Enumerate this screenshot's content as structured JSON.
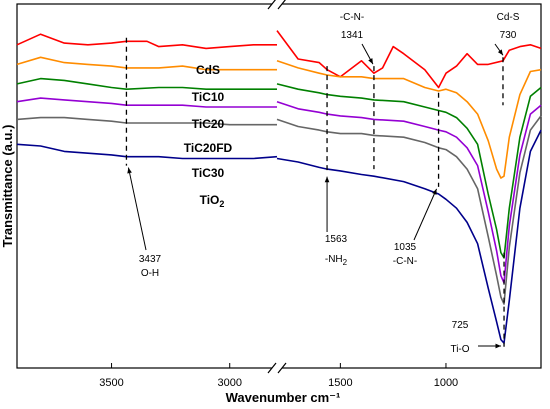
{
  "chart_data": {
    "type": "line",
    "xlabel": "Wavenumber cm⁻¹",
    "ylabel": "Transmittance (a.u.)",
    "x_reversed": true,
    "x_axis_break": [
      2800,
      1800
    ],
    "xlim_left": [
      3900,
      2800
    ],
    "xlim_right": [
      1800,
      550
    ],
    "x_ticks": [
      3500,
      3000,
      1500,
      1000
    ],
    "legend": "none (series named by inline labels)",
    "series": [
      {
        "name": "CdS",
        "color": "#ff0000",
        "points": [
          [
            3900,
            72
          ],
          [
            3800,
            78
          ],
          [
            3700,
            73
          ],
          [
            3600,
            72
          ],
          [
            3500,
            73
          ],
          [
            3437,
            74
          ],
          [
            3350,
            74
          ],
          [
            3300,
            71
          ],
          [
            3200,
            72
          ],
          [
            3100,
            70
          ],
          [
            3000,
            71
          ],
          [
            2900,
            72
          ],
          [
            2800,
            72
          ],
          [
            1800,
            80
          ],
          [
            1700,
            64
          ],
          [
            1600,
            62
          ],
          [
            1563,
            58
          ],
          [
            1500,
            54
          ],
          [
            1400,
            63
          ],
          [
            1341,
            56
          ],
          [
            1300,
            59
          ],
          [
            1250,
            71
          ],
          [
            1200,
            67
          ],
          [
            1100,
            58
          ],
          [
            1035,
            48
          ],
          [
            1000,
            56
          ],
          [
            950,
            60
          ],
          [
            900,
            67
          ],
          [
            850,
            61
          ],
          [
            800,
            61
          ],
          [
            730,
            63
          ],
          [
            700,
            69
          ],
          [
            650,
            71
          ],
          [
            600,
            72
          ],
          [
            550,
            70
          ]
        ]
      },
      {
        "name": "TiC10",
        "color": "#ff8c00",
        "points": [
          [
            3900,
            61
          ],
          [
            3800,
            65
          ],
          [
            3700,
            62
          ],
          [
            3600,
            61
          ],
          [
            3500,
            60
          ],
          [
            3437,
            59
          ],
          [
            3300,
            59
          ],
          [
            3200,
            60
          ],
          [
            3100,
            58
          ],
          [
            3000,
            58
          ],
          [
            2900,
            58
          ],
          [
            2800,
            58
          ],
          [
            1800,
            63
          ],
          [
            1700,
            59
          ],
          [
            1600,
            56
          ],
          [
            1563,
            55
          ],
          [
            1500,
            54
          ],
          [
            1400,
            54
          ],
          [
            1341,
            53
          ],
          [
            1200,
            53
          ],
          [
            1100,
            48
          ],
          [
            1035,
            46
          ],
          [
            1000,
            47
          ],
          [
            950,
            45
          ],
          [
            900,
            40
          ],
          [
            850,
            33
          ],
          [
            800,
            18
          ],
          [
            760,
            2
          ],
          [
            740,
            -3
          ],
          [
            725,
            -2
          ],
          [
            700,
            20
          ],
          [
            650,
            44
          ],
          [
            600,
            57
          ],
          [
            550,
            58
          ]
        ]
      },
      {
        "name": "TiC20",
        "color": "#008000",
        "points": [
          [
            3900,
            50
          ],
          [
            3800,
            53
          ],
          [
            3700,
            52
          ],
          [
            3600,
            50
          ],
          [
            3500,
            48
          ],
          [
            3437,
            47
          ],
          [
            3300,
            48
          ],
          [
            3200,
            48
          ],
          [
            3100,
            47
          ],
          [
            3000,
            47
          ],
          [
            2900,
            47
          ],
          [
            2800,
            47
          ],
          [
            1800,
            50
          ],
          [
            1700,
            47
          ],
          [
            1600,
            45
          ],
          [
            1563,
            44
          ],
          [
            1500,
            43
          ],
          [
            1400,
            42
          ],
          [
            1341,
            41
          ],
          [
            1200,
            40
          ],
          [
            1100,
            37
          ],
          [
            1035,
            35
          ],
          [
            1000,
            34
          ],
          [
            950,
            31
          ],
          [
            900,
            25
          ],
          [
            850,
            16
          ],
          [
            800,
            -12
          ],
          [
            760,
            -32
          ],
          [
            740,
            -45
          ],
          [
            725,
            -48
          ],
          [
            700,
            -20
          ],
          [
            650,
            20
          ],
          [
            600,
            43
          ],
          [
            550,
            48
          ]
        ]
      },
      {
        "name": "TiC20FD",
        "color": "#9400d3",
        "points": [
          [
            3900,
            40
          ],
          [
            3800,
            42
          ],
          [
            3700,
            41
          ],
          [
            3600,
            40
          ],
          [
            3500,
            39
          ],
          [
            3437,
            38
          ],
          [
            3300,
            38
          ],
          [
            3200,
            38
          ],
          [
            3100,
            37
          ],
          [
            3000,
            37
          ],
          [
            2900,
            37
          ],
          [
            2800,
            37
          ],
          [
            1800,
            40
          ],
          [
            1700,
            36
          ],
          [
            1600,
            34
          ],
          [
            1563,
            33
          ],
          [
            1500,
            32
          ],
          [
            1400,
            31
          ],
          [
            1341,
            30
          ],
          [
            1200,
            29
          ],
          [
            1100,
            26
          ],
          [
            1035,
            24
          ],
          [
            1000,
            23
          ],
          [
            950,
            20
          ],
          [
            900,
            14
          ],
          [
            850,
            4
          ],
          [
            800,
            -22
          ],
          [
            760,
            -44
          ],
          [
            740,
            -58
          ],
          [
            725,
            -62
          ],
          [
            700,
            -30
          ],
          [
            650,
            10
          ],
          [
            600,
            33
          ],
          [
            550,
            38
          ]
        ]
      },
      {
        "name": "TiC30",
        "color": "#666666",
        "points": [
          [
            3900,
            30
          ],
          [
            3800,
            31
          ],
          [
            3700,
            31
          ],
          [
            3600,
            30
          ],
          [
            3500,
            29
          ],
          [
            3437,
            28
          ],
          [
            3300,
            28
          ],
          [
            3200,
            28
          ],
          [
            3100,
            28
          ],
          [
            3000,
            27
          ],
          [
            2900,
            27
          ],
          [
            2800,
            27
          ],
          [
            1800,
            30
          ],
          [
            1700,
            26
          ],
          [
            1600,
            24
          ],
          [
            1563,
            23
          ],
          [
            1500,
            22
          ],
          [
            1400,
            22
          ],
          [
            1341,
            21
          ],
          [
            1200,
            20
          ],
          [
            1100,
            17
          ],
          [
            1035,
            14
          ],
          [
            1000,
            13
          ],
          [
            950,
            9
          ],
          [
            900,
            2
          ],
          [
            850,
            -9
          ],
          [
            800,
            -36
          ],
          [
            760,
            -58
          ],
          [
            740,
            -70
          ],
          [
            725,
            -74
          ],
          [
            700,
            -42
          ],
          [
            650,
            0
          ],
          [
            600,
            24
          ],
          [
            550,
            32
          ]
        ]
      },
      {
        "name": "TiO2",
        "color": "#00008b",
        "points": [
          [
            3900,
            16
          ],
          [
            3800,
            15
          ],
          [
            3700,
            12
          ],
          [
            3600,
            11
          ],
          [
            3500,
            10
          ],
          [
            3437,
            9
          ],
          [
            3300,
            9
          ],
          [
            3200,
            8
          ],
          [
            3100,
            8
          ],
          [
            3000,
            8
          ],
          [
            2900,
            8
          ],
          [
            2800,
            9
          ],
          [
            1800,
            8
          ],
          [
            1700,
            6
          ],
          [
            1600,
            3
          ],
          [
            1563,
            2
          ],
          [
            1500,
            1
          ],
          [
            1400,
            -1
          ],
          [
            1341,
            -2
          ],
          [
            1200,
            -5
          ],
          [
            1100,
            -9
          ],
          [
            1035,
            -12
          ],
          [
            1000,
            -15
          ],
          [
            950,
            -20
          ],
          [
            900,
            -28
          ],
          [
            850,
            -40
          ],
          [
            800,
            -65
          ],
          [
            760,
            -84
          ],
          [
            740,
            -94
          ],
          [
            725,
            -96
          ],
          [
            700,
            -72
          ],
          [
            650,
            -20
          ],
          [
            600,
            12
          ],
          [
            550,
            24
          ]
        ]
      }
    ],
    "ylim": [
      -110,
      95
    ],
    "annotations": [
      {
        "id": "oh",
        "wavenumber": 3437,
        "line_from": 76,
        "line_to": 4,
        "text1": "3437",
        "text2": "O-H"
      },
      {
        "id": "nh2",
        "wavenumber": 1563,
        "line_from": 60,
        "line_to": 0,
        "text1": "1563",
        "text2_main": "-NH",
        "text2_sub": "2"
      },
      {
        "id": "cn1341",
        "wavenumber": 1341,
        "line_from": 60,
        "line_to": 2,
        "text1": "-C-N-",
        "text2": "1341"
      },
      {
        "id": "cn1035",
        "wavenumber": 1035,
        "line_from": 45,
        "line_to": -8,
        "text1": "1035",
        "text2": "-C-N-"
      },
      {
        "id": "cds",
        "wavenumber": 730,
        "line_from": 65,
        "line_to": 38,
        "text1": "Cd-S",
        "text2": "730"
      },
      {
        "id": "tio",
        "wavenumber": 725,
        "line_from": -45,
        "line_to": -98,
        "text1": "725",
        "text2": "Ti-O"
      }
    ],
    "series_labels": {
      "CdS": "CdS",
      "TiC10": "TiC10",
      "TiC20": "TiC20",
      "TiC20FD": "TiC20FD",
      "TiC30": "TiC30",
      "TiO2_main": "TiO",
      "TiO2_sub": "2"
    }
  }
}
